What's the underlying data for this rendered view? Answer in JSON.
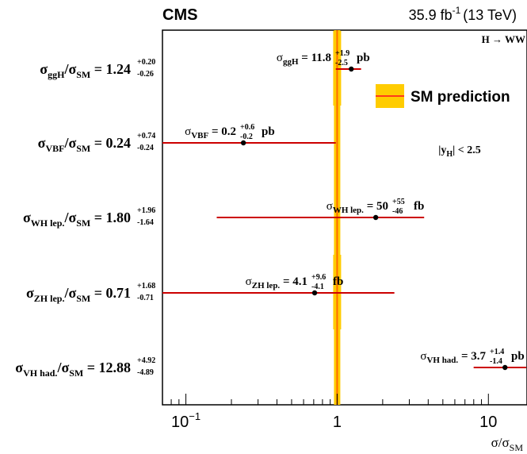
{
  "chart_data": {
    "type": "scatter",
    "experiment": "CMS",
    "luminosity": "35.9 fb",
    "luminosity_exp": "-1",
    "energy": "(13 TeV)",
    "channel_label": "H  → WW",
    "cut_label_main": "|y",
    "cut_label_sub": "H",
    "cut_label_rest": "| < 2.5",
    "xlabel_main": "σ/σ",
    "xlabel_sub": "SM",
    "xscale": "log",
    "xlim": [
      0.07,
      18
    ],
    "x_ticks": [
      {
        "value": 0.1,
        "base": "10",
        "exp": "−1"
      },
      {
        "value": 1,
        "base": "1",
        "exp": ""
      },
      {
        "value": 10,
        "base": "10",
        "exp": ""
      }
    ],
    "legend_label": "SM prediction",
    "legend_placement": "top-right",
    "colors": {
      "band": "#ffcc00",
      "line": "#ff6b00",
      "error_bar": "#cc0000",
      "marker": "#000000"
    },
    "measurements": [
      {
        "name_main": "σ",
        "name_sub": "ggH",
        "name_den": "/σ",
        "name_den_sub": "SM",
        "ratio": 1.24,
        "ratio_text": "1.24",
        "err_up": "+0.20",
        "err_down": "-0.26",
        "xs_sym": "σ",
        "xs_sub": "ggH",
        "xs_value": "11.8",
        "xs_up": "+1.9",
        "xs_down": "-2.5",
        "xs_unit": "pb",
        "lo": 0.98,
        "hi": 1.44,
        "band_present": true
      },
      {
        "name_main": "σ",
        "name_sub": "VBF",
        "name_den": "/σ",
        "name_den_sub": "SM",
        "ratio": 0.24,
        "ratio_text": "0.24",
        "err_up": "+0.74",
        "err_down": "-0.24",
        "xs_sym": "σ",
        "xs_sub": "VBF",
        "xs_value": "0.2",
        "xs_up": "+0.6",
        "xs_down": "-0.2",
        "xs_unit": "pb",
        "lo": 0.07,
        "hi": 0.98,
        "band_present": false
      },
      {
        "name_main": "σ",
        "name_sub": "WH lep.",
        "name_den": "/σ",
        "name_den_sub": "SM",
        "ratio": 1.8,
        "ratio_text": "1.80",
        "err_up": "+1.96",
        "err_down": "-1.64",
        "xs_sym": "σ",
        "xs_sub": "WH lep.",
        "xs_value": "50",
        "xs_up": "+55",
        "xs_down": "-46",
        "xs_unit": "fb",
        "lo": 0.16,
        "hi": 3.76,
        "band_present": false
      },
      {
        "name_main": "σ",
        "name_sub": "ZH lep.",
        "name_den": "/σ",
        "name_den_sub": "SM",
        "ratio": 0.71,
        "ratio_text": "0.71",
        "err_up": "+1.68",
        "err_down": "-0.71",
        "xs_sym": "σ",
        "xs_sub": "ZH lep.",
        "xs_value": "4.1",
        "xs_up": "+9.6",
        "xs_down": "-4.1",
        "xs_unit": "fb",
        "lo": 0.07,
        "hi": 2.39,
        "band_present": true
      },
      {
        "name_main": "σ",
        "name_sub": "VH had.",
        "name_den": "/σ",
        "name_den_sub": "SM",
        "ratio": 12.88,
        "ratio_text": "12.88",
        "err_up": "+4.92",
        "err_down": "-4.89",
        "xs_sym": "σ",
        "xs_sub": "VH had.",
        "xs_value": "3.7",
        "xs_up": "+1.4",
        "xs_down": "-1.4",
        "xs_unit": "pb",
        "lo": 7.99,
        "hi": 17.8,
        "band_present": false
      }
    ]
  }
}
